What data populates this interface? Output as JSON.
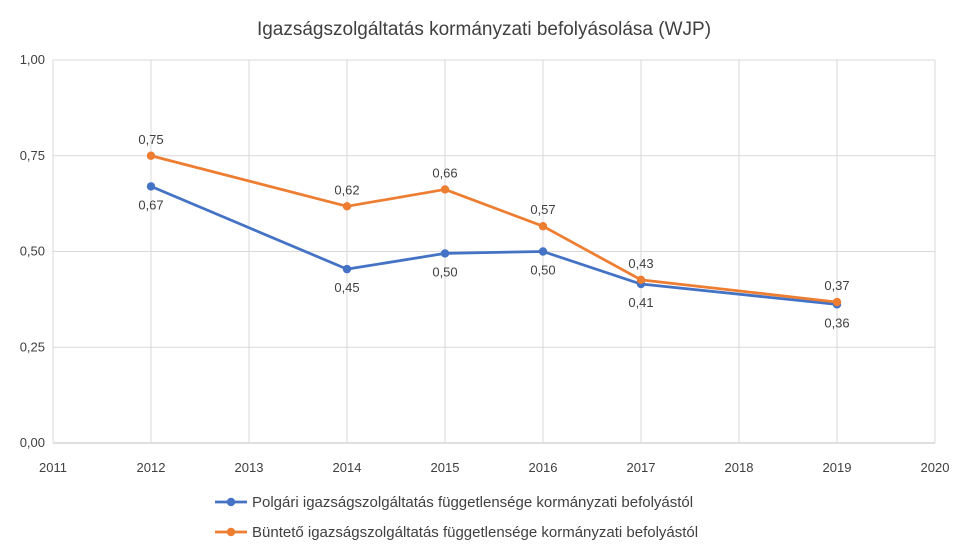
{
  "chart_data": {
    "type": "line",
    "title": "Igazságszolgáltatás kormányzati befolyásolása (WJP)",
    "xlabel": "",
    "ylabel": "",
    "xlim": [
      2011,
      2020
    ],
    "ylim": [
      0,
      1
    ],
    "x_ticks": [
      2011,
      2012,
      2013,
      2014,
      2015,
      2016,
      2017,
      2018,
      2019,
      2020
    ],
    "y_ticks": [
      0,
      0.25,
      0.5,
      0.75,
      1
    ],
    "y_tick_labels": [
      "0,00",
      "0,25",
      "0,50",
      "0,75",
      "1,00"
    ],
    "grid": true,
    "legend_position": "bottom",
    "series": [
      {
        "name": "Polgári igazságszolgáltatás függetlensége kormányzati befolyástól",
        "color": "#4472C4",
        "label_position": "below",
        "points": [
          {
            "x": 2012,
            "y": 0.67,
            "label": "0,67"
          },
          {
            "x": 2014,
            "y": 0.454,
            "label": "0,45"
          },
          {
            "x": 2015,
            "y": 0.495,
            "label": "0,50"
          },
          {
            "x": 2016,
            "y": 0.5,
            "label": "0,50"
          },
          {
            "x": 2017,
            "y": 0.415,
            "label": "0,41"
          },
          {
            "x": 2019,
            "y": 0.362,
            "label": "0,36"
          }
        ]
      },
      {
        "name": "Büntető igazságszolgáltatás függetlensége kormányzati befolyástól",
        "color": "#ED7D31",
        "label_position": "above",
        "points": [
          {
            "x": 2012,
            "y": 0.75,
            "label": "0,75"
          },
          {
            "x": 2014,
            "y": 0.618,
            "label": "0,62"
          },
          {
            "x": 2015,
            "y": 0.662,
            "label": "0,66"
          },
          {
            "x": 2016,
            "y": 0.566,
            "label": "0,57"
          },
          {
            "x": 2017,
            "y": 0.426,
            "label": "0,43"
          },
          {
            "x": 2019,
            "y": 0.368,
            "label": "0,37"
          }
        ]
      }
    ]
  }
}
